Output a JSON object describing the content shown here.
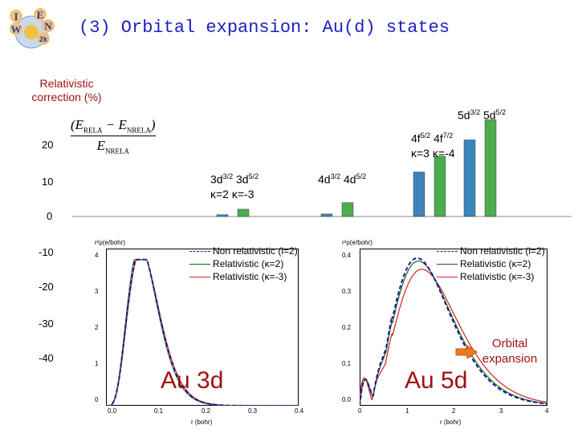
{
  "slide": {
    "title": "(3) Orbital expansion: Au(d) states",
    "logo_letters": [
      "I",
      "E",
      "N",
      "W",
      "2k"
    ],
    "ylabel_line1": "Relativistic",
    "ylabel_line2": "correction (%)",
    "formula_top": "(E",
    "formula_top_sub1": "RELA",
    "formula_minus": " − E",
    "formula_top_sub2": "NRELA",
    "formula_top_close": ")",
    "formula_bottom": "E",
    "formula_bottom_sub": "NRELA"
  },
  "bar_chart": {
    "yticks": [
      "20",
      "10",
      "0",
      "-10",
      "-20",
      "-30",
      "-40"
    ],
    "groups": [
      {
        "label": "3d",
        "sup1": "3/2",
        "label2": " 3d",
        "sup2": "5/2",
        "kappa": "κ=2  κ=-3"
      },
      {
        "label": "4d",
        "sup1": "3/2",
        "label2": " 4d",
        "sup2": "5/2"
      },
      {
        "label": "4f",
        "sup1": "5/2",
        "label2": " 4f",
        "sup2": "7/2",
        "kappa": "κ=3  κ=-4"
      },
      {
        "label": "5d",
        "sup1": "3/2",
        "label2": " 5d",
        "sup2": "5/2"
      }
    ],
    "bar_values": [
      {
        "state": "3d3/2",
        "value": 0.5,
        "color": "#1a6fb0"
      },
      {
        "state": "3d5/2",
        "value": 2.0,
        "color": "#2e9e2e"
      },
      {
        "state": "4d3/2",
        "value": 0.7,
        "color": "#1a6fb0"
      },
      {
        "state": "4d5/2",
        "value": 3.8,
        "color": "#2e9e2e"
      },
      {
        "state": "4f5/2",
        "value": 12.2,
        "color": "#1a6fb0"
      },
      {
        "state": "4f7/2",
        "value": 16.5,
        "color": "#2e9e2e"
      },
      {
        "state": "5d3/2",
        "value": 21.0,
        "color": "#1a6fb0"
      },
      {
        "state": "5d5/2",
        "value": 26.5,
        "color": "#2e9e2e"
      }
    ]
  },
  "panel_3d": {
    "ylabel": "r²ρ(e/bohr)",
    "xlabel": "r (bohr)",
    "yticks": [
      "4",
      "3",
      "2",
      "1",
      "0"
    ],
    "xticks": [
      "0.0",
      "0.1",
      "0.2",
      "0.3",
      "0.4"
    ],
    "legend": [
      "Non relativistic (l=2)",
      "Relativistic (κ=2)",
      "Relativistic (κ=-3)"
    ],
    "caption": "Au 3d"
  },
  "panel_5d": {
    "ylabel": "r²ρ(e/bohr)",
    "xlabel": "r (bohr)",
    "yticks": [
      "0.4",
      "0.3",
      "0.2",
      "0.1",
      "0.0"
    ],
    "xticks": [
      "0",
      "1",
      "2",
      "3",
      "4"
    ],
    "legend": [
      "Non relativistic (l=2)",
      "Relativistic (κ=2)",
      "Relativistic (κ=-3)"
    ],
    "caption": "Au 5d"
  },
  "annotation": {
    "line1": "Orbital",
    "line2": "expansion"
  },
  "colors": {
    "title": "#1f1fbf",
    "accent": "#a01010",
    "nonrel": "#1a1aa0",
    "rel_k2": "#1a6a1a",
    "rel_km3": "#d02020",
    "arrow": "#f07820"
  }
}
